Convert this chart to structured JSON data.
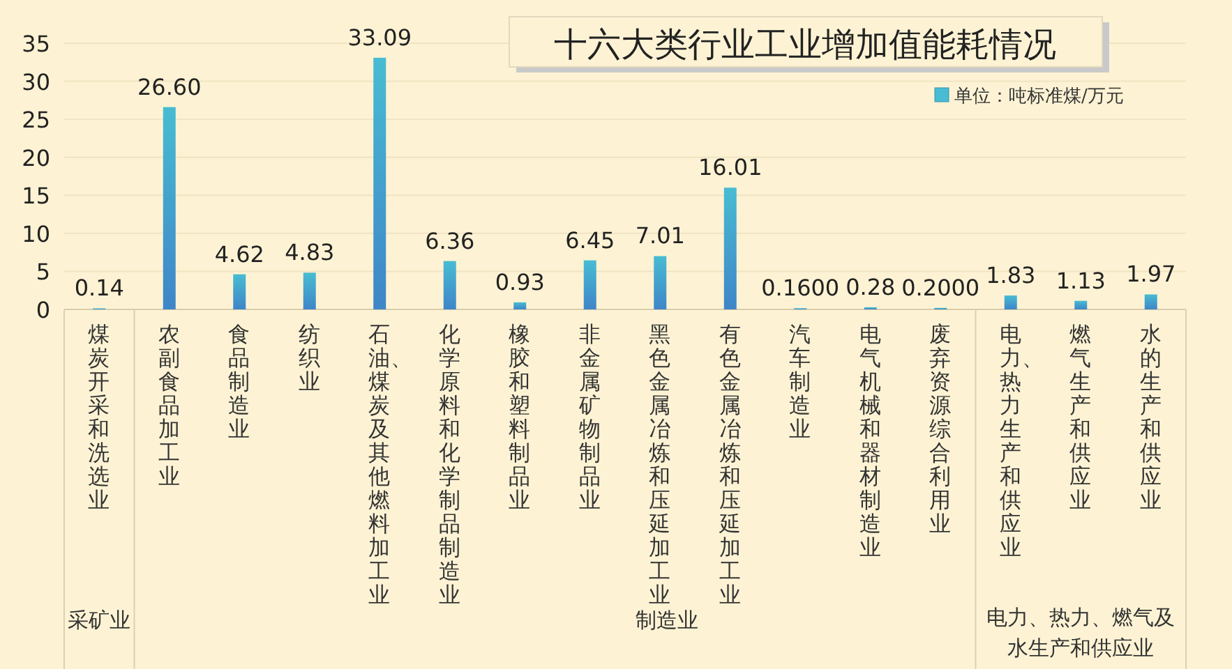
{
  "chart_data": {
    "type": "bar",
    "title": "十六大类行业工业增加值能耗情况",
    "categories": [
      "煤炭开采和洗选业",
      "农副食品加工业",
      "食品制造业",
      "纺织业",
      "石油、煤炭及其他燃料加工业",
      "化学原料和化学制品制造业",
      "橡胶和塑料制品业",
      "非金属矿物制品业",
      "黑色金属冶炼和压延加工业",
      "有色金属冶炼和压延加工业",
      "汽车制造业",
      "电气机械和器材制造业",
      "废弃资源综合利用业",
      "电力、热力生产和供应业",
      "燃气生产和供应业",
      "水的生产和供应业"
    ],
    "series": [
      {
        "name": "单位：吨标准煤/万元",
        "color": "#48bcd2",
        "values": [
          0.14,
          26.6,
          4.62,
          4.83,
          33.09,
          6.36,
          0.93,
          6.45,
          7.01,
          16.01,
          0.16,
          0.28,
          0.2,
          1.83,
          1.13,
          1.97
        ],
        "value_labels": [
          "0.14",
          "26.60",
          "4.62",
          "4.83",
          "33.09",
          "6.36",
          "0.93",
          "6.45",
          "7.01",
          "16.01",
          "0.1600",
          "0.28",
          "0.2000",
          "1.83",
          "1.13",
          "1.97"
        ]
      }
    ],
    "ylim": [
      0,
      35
    ],
    "yticks": [
      0,
      5,
      10,
      15,
      20,
      25,
      30,
      35
    ],
    "grid": "y",
    "legend": "top right",
    "annotations": [
      "采矿业",
      "制造业",
      "电力、热力、燃气及水生产和供应业"
    ]
  }
}
